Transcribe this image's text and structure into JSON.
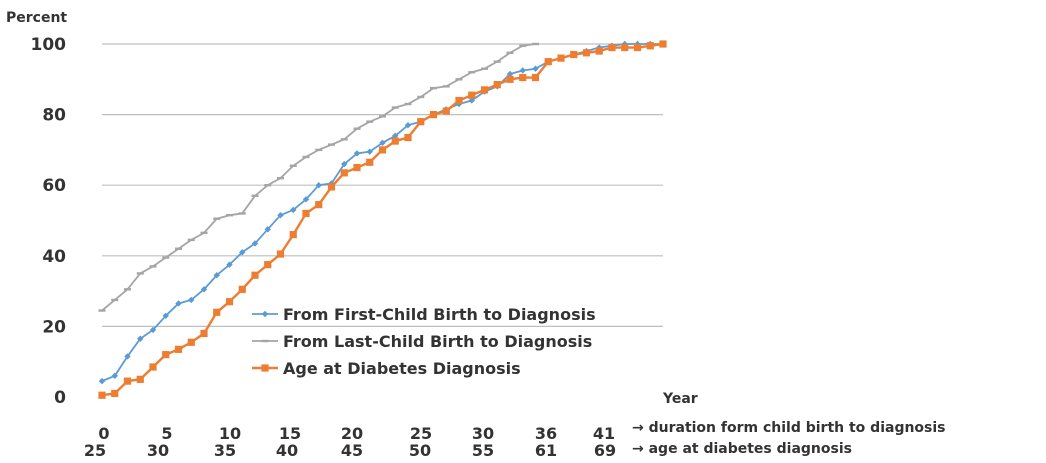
{
  "chart_data": {
    "type": "line",
    "ylabel": "Percent",
    "xlabel": "Year",
    "ylim": [
      0,
      100
    ],
    "y_ticks": [
      "0",
      "20",
      "40",
      "60",
      "80",
      "100"
    ],
    "x_ticks_top": [
      "0",
      "5",
      "10",
      "15",
      "20",
      "25",
      "30",
      "36",
      "41"
    ],
    "x_ticks_bottom": [
      "25",
      "30",
      "35",
      "40",
      "45",
      "50",
      "55",
      "61",
      "69"
    ],
    "x_axis_note_top": "→ duration form child birth to diagnosis",
    "x_axis_note_bottom": "→ age at diabetes diagnosis",
    "grid": true,
    "legend_position": "center",
    "colors": {
      "first_child": "#5b9bd5",
      "last_child": "#a5a5a5",
      "age": "#ed7d31",
      "grid": "#bfbfbf"
    },
    "x_index": [
      0,
      1,
      2,
      3,
      4,
      5,
      6,
      7,
      8,
      9,
      10,
      11,
      12,
      13,
      14,
      15,
      16,
      17,
      18,
      19,
      20,
      21,
      22,
      23,
      24,
      25,
      26,
      27,
      28,
      29,
      30,
      31,
      32,
      33,
      34,
      35,
      36,
      37,
      38,
      39,
      40,
      41,
      42,
      43,
      44
    ],
    "series": [
      {
        "name": "From First-Child Birth to Diagnosis",
        "values": [
          4.5,
          6,
          11.5,
          16.5,
          19,
          23,
          26.5,
          27.5,
          30.5,
          34.5,
          37.5,
          41,
          43.5,
          47.5,
          51.5,
          53,
          56,
          60,
          60.5,
          66,
          69,
          69.5,
          72,
          74,
          77,
          78,
          80,
          81.5,
          83,
          84,
          86.5,
          88,
          91.5,
          92.5,
          93,
          95,
          96,
          97,
          98,
          99,
          99.5,
          100,
          100,
          100,
          100
        ]
      },
      {
        "name": "From Last-Child Birth to Diagnosis",
        "values": [
          24.5,
          27.5,
          30.5,
          35,
          37,
          39.5,
          42,
          44.5,
          46.5,
          50.5,
          51.5,
          52,
          57,
          60,
          62,
          65.5,
          68,
          70,
          71.5,
          73,
          76,
          78,
          79.5,
          82,
          83,
          85,
          87.5,
          88,
          90,
          92,
          93,
          95,
          97.5,
          99.5,
          100
        ]
      },
      {
        "name": "Age at Diabetes Diagnosis",
        "values": [
          0.5,
          1,
          4.5,
          5,
          8.5,
          12,
          13.5,
          15.5,
          18,
          24,
          27,
          30.5,
          34.5,
          37.5,
          40.5,
          46,
          52,
          54.5,
          59.5,
          63.5,
          65,
          66.5,
          70,
          72.5,
          73.5,
          78,
          80,
          81,
          84,
          85.5,
          87,
          88.5,
          90,
          90.5,
          90.5,
          95,
          96,
          97,
          97.5,
          98,
          99,
          99,
          99,
          99.5,
          100
        ]
      }
    ]
  }
}
